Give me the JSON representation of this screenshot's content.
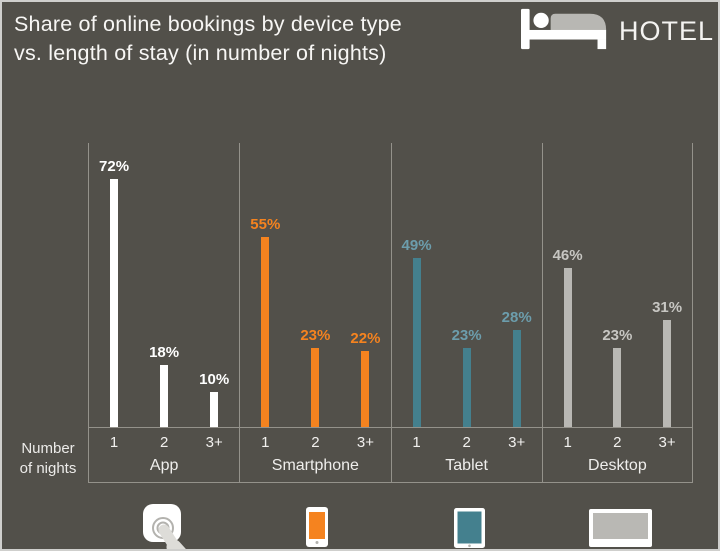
{
  "header": {
    "title_line1": "Share of online bookings by device type",
    "title_line2": "vs. length of stay (in number of nights)",
    "logo_text": "HOTEL",
    "logo_icon": "bed-icon"
  },
  "axis": {
    "row_label_line1": "Number",
    "row_label_line2": "of nights"
  },
  "chart_data": {
    "type": "bar",
    "title": "Share of online bookings by device type vs. length of stay (in number of nights)",
    "categories": [
      "1",
      "2",
      "3+"
    ],
    "value_suffix": "%",
    "ylim": [
      0,
      82
    ],
    "grid": false,
    "legend_position": "bottom-icons",
    "series": [
      {
        "name": "App",
        "icon": "app-tap-icon",
        "bar_color": "#ffffff",
        "label_color": "#ffffff",
        "values": [
          72,
          18,
          10
        ]
      },
      {
        "name": "Smartphone",
        "icon": "smartphone-icon",
        "bar_color": "#f5831f",
        "label_color": "#f5831f",
        "values": [
          55,
          23,
          22
        ]
      },
      {
        "name": "Tablet",
        "icon": "tablet-icon",
        "bar_color": "#44808e",
        "label_color": "#6c9dac",
        "values": [
          49,
          23,
          28
        ]
      },
      {
        "name": "Desktop",
        "icon": "desktop-icon",
        "bar_color": "#b9b8b4",
        "label_color": "#c7c6c2",
        "values": [
          46,
          23,
          31
        ]
      }
    ]
  },
  "colors": {
    "background": "#52504a",
    "divider": "#94928b",
    "text": "#f5f4f2",
    "frame_border": "#cfcfcd",
    "icon_stroke": "#b3b2ae",
    "hand": "#dddcd8"
  }
}
